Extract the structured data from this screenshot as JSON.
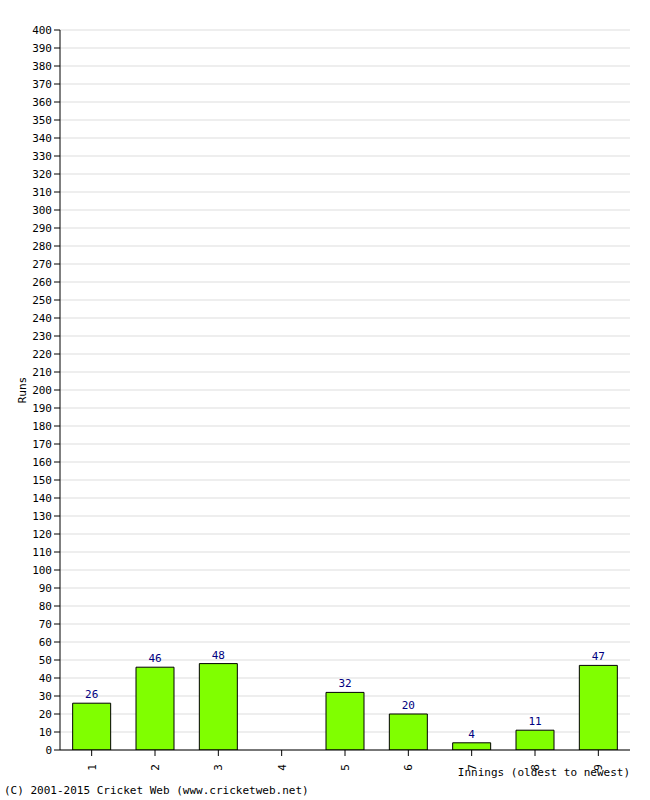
{
  "chart_data": {
    "type": "bar",
    "categories": [
      "1",
      "2",
      "3",
      "4",
      "5",
      "6",
      "7",
      "8",
      "9"
    ],
    "values": [
      26,
      46,
      48,
      0,
      32,
      20,
      4,
      11,
      47
    ],
    "color": "#80ff00",
    "x_label": "Innings (oldest to newest)",
    "y_label": "Runs",
    "annotations": [
      "(C) 2001-2015 Cricket Web (www.cricketweb.net)"
    ],
    "ylim": [
      0,
      400
    ],
    "yticks": [
      0,
      10,
      20,
      30,
      40,
      50,
      60,
      70,
      80,
      90,
      100,
      110,
      120,
      130,
      140,
      150,
      160,
      170,
      180,
      190,
      200,
      210,
      220,
      230,
      240,
      250,
      260,
      270,
      280,
      290,
      300,
      310,
      320,
      330,
      340,
      350,
      360,
      370,
      380,
      390,
      400
    ],
    "grid": true,
    "data_labels": true
  }
}
